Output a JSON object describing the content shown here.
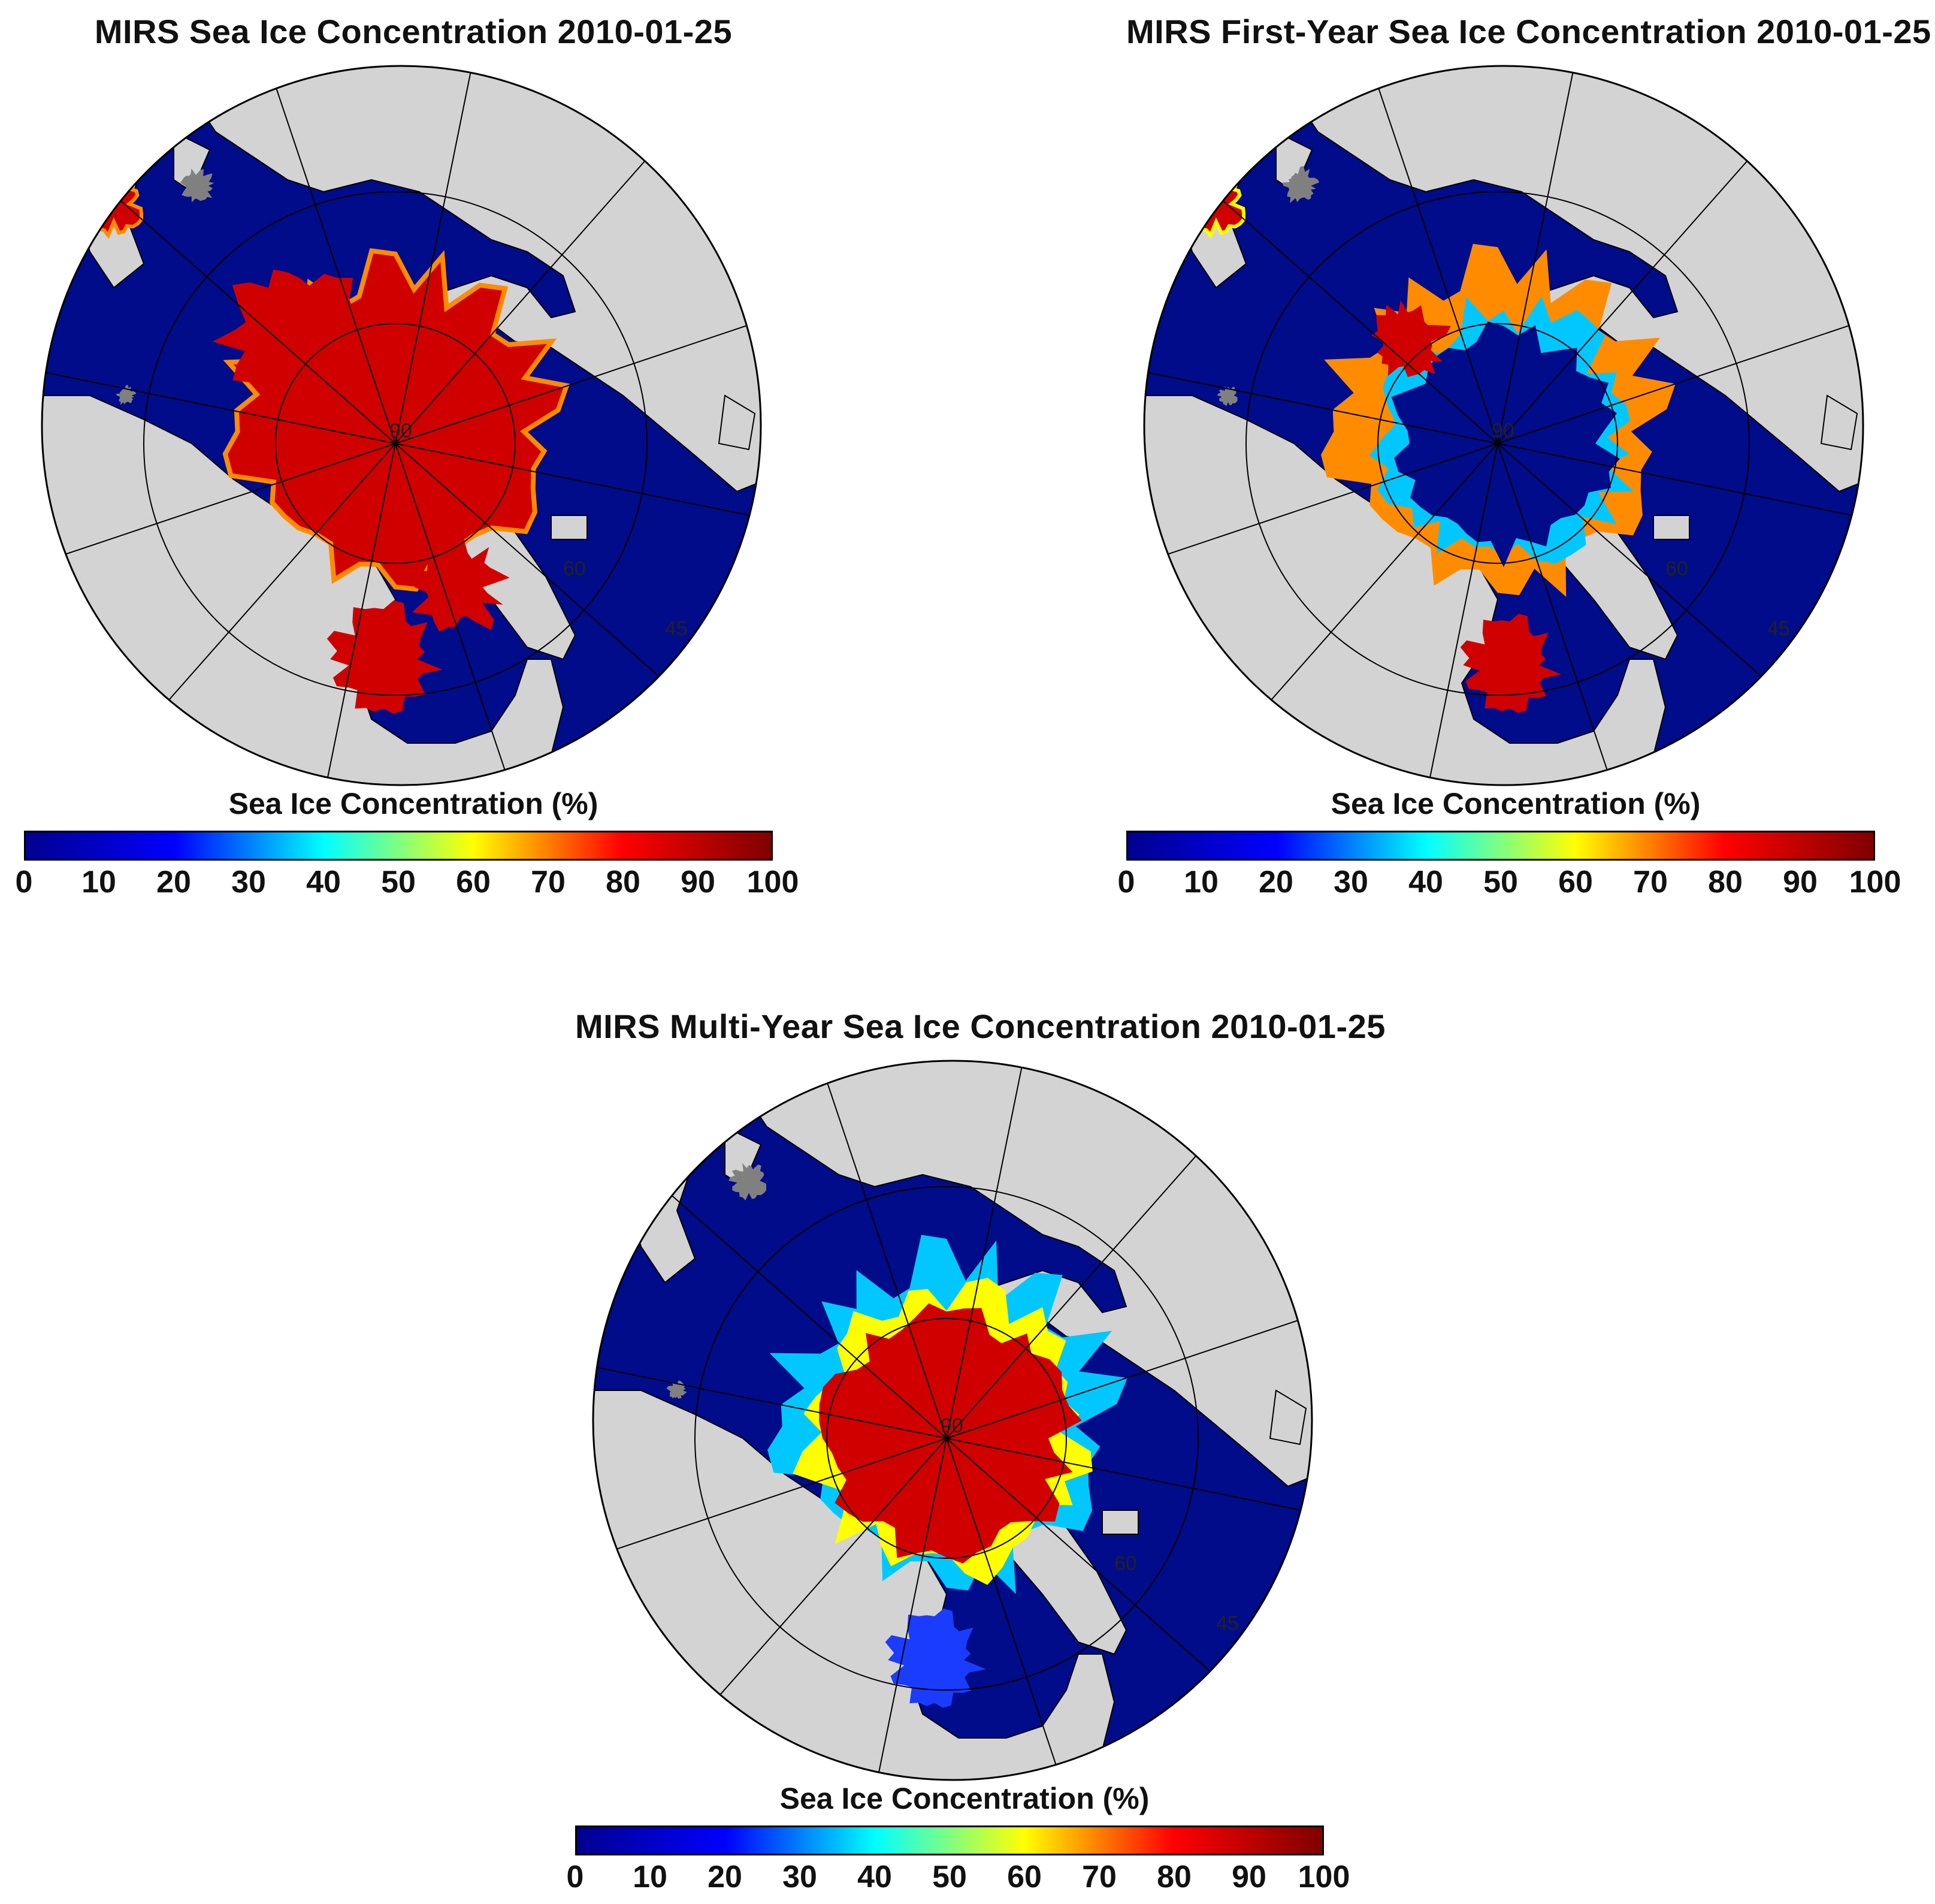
{
  "panels": [
    {
      "title": "MIRS Sea Ice Concentration 2010-01-25",
      "pattern": "total"
    },
    {
      "title": "MIRS First-Year Sea Ice Concentration 2010-01-25",
      "pattern": "firstyear"
    },
    {
      "title": "MIRS Multi-Year Sea Ice Concentration 2010-01-25",
      "pattern": "multiyear"
    }
  ],
  "colorbar": {
    "label": "Sea Ice Concentration (%)",
    "ticks": [
      "0",
      "10",
      "20",
      "30",
      "40",
      "50",
      "60",
      "70",
      "80",
      "90",
      "100"
    ],
    "range": [
      0,
      100
    ],
    "stops": [
      "#00008f",
      "#0000ff",
      "#00ffff",
      "#ffff00",
      "#ff0000",
      "#800000"
    ]
  },
  "map_labels": {
    "pole": "90",
    "lat60": "60",
    "lat45": "45"
  },
  "colors": {
    "ocean": "#000c8a",
    "land": "#d3d3d3",
    "missing": "#808080",
    "ice_high": "#d10000",
    "ice_mid": "#ff8c00",
    "ice_low": "#ffff00",
    "coast": "#000000"
  }
}
